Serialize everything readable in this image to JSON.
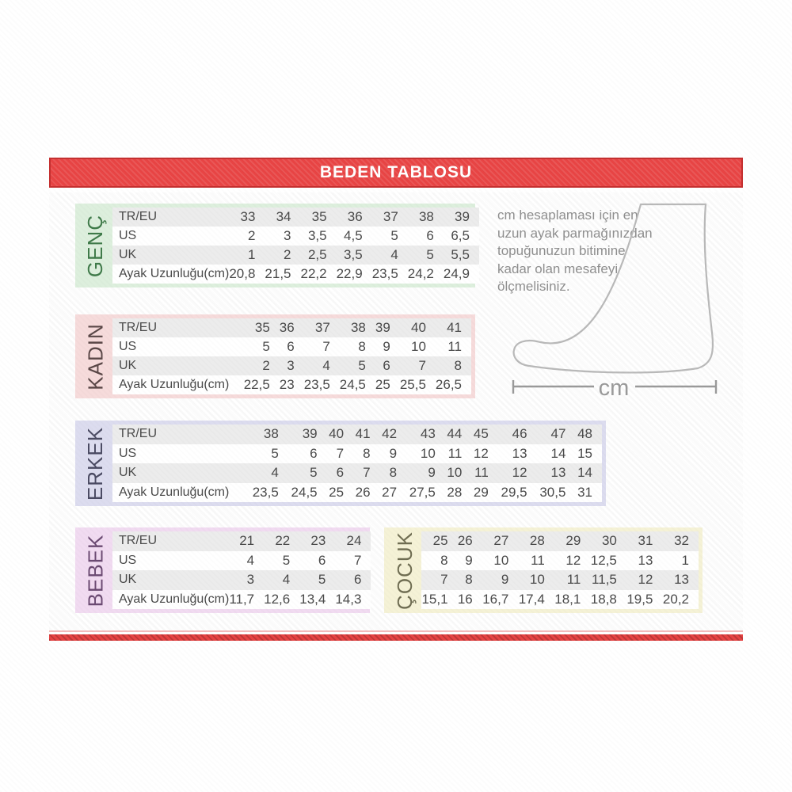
{
  "header": {
    "title": "BEDEN TABLOSU"
  },
  "colors": {
    "banner_red": "#e84444",
    "banner_border": "#c53030",
    "row_stripe": "#ececec",
    "table_text": "#4a4a4a",
    "foot_outline": "#b9b9b9"
  },
  "instruction": {
    "lines": [
      "cm hesaplaması için en",
      "uzun ayak parmağınızdan",
      "topuğunuzun bitimine",
      "kadar olan mesafeyi",
      "ölçmelisiniz."
    ]
  },
  "foot": {
    "measure_label": "cm"
  },
  "sections": [
    {
      "id": "genc",
      "label": "GENÇ",
      "label_color": "#3f7a49",
      "bg_color": "#ddefdd",
      "row_headers": [
        "TR/EU",
        "US",
        "UK",
        "Ayak Uzunluğu(cm)"
      ],
      "rows": [
        [
          "33",
          "34",
          "35",
          "36",
          "37",
          "38",
          "39"
        ],
        [
          "2",
          "3",
          "3,5",
          "4,5",
          "5",
          "6",
          "6,5"
        ],
        [
          "1",
          "2",
          "2,5",
          "3,5",
          "4",
          "5",
          "5,5"
        ],
        [
          "20,8",
          "21,5",
          "22,2",
          "22,9",
          "23,5",
          "24,2",
          "24,9"
        ]
      ]
    },
    {
      "id": "kadin",
      "label": "KADIN",
      "label_color": "#5a4747",
      "bg_color": "#f6dbdb",
      "row_headers": [
        "TR/EU",
        "US",
        "UK",
        "Ayak Uzunluğu(cm)"
      ],
      "rows": [
        [
          "35",
          "36",
          "37",
          "38",
          "39",
          "40",
          "41"
        ],
        [
          "5",
          "6",
          "7",
          "8",
          "9",
          "10",
          "11"
        ],
        [
          "2",
          "3",
          "4",
          "5",
          "6",
          "7",
          "8"
        ],
        [
          "22,5",
          "23",
          "23,5",
          "24,5",
          "25",
          "25,5",
          "26,5"
        ]
      ]
    },
    {
      "id": "erkek",
      "label": "ERKEK",
      "label_color": "#4b4b63",
      "bg_color": "#dcdcef",
      "row_headers": [
        "TR/EU",
        "US",
        "UK",
        "Ayak Uzunluğu(cm)"
      ],
      "rows": [
        [
          "38",
          "39",
          "40",
          "41",
          "42",
          "43",
          "44",
          "45",
          "46",
          "47",
          "48"
        ],
        [
          "5",
          "6",
          "7",
          "8",
          "9",
          "10",
          "11",
          "12",
          "13",
          "14",
          "15"
        ],
        [
          "4",
          "5",
          "6",
          "7",
          "8",
          "9",
          "10",
          "11",
          "12",
          "13",
          "14"
        ],
        [
          "23,5",
          "24,5",
          "25",
          "26",
          "27",
          "27,5",
          "28",
          "29",
          "29,5",
          "30,5",
          "31"
        ]
      ]
    },
    {
      "id": "bebek",
      "label": "BEBEK",
      "label_color": "#6b4a72",
      "bg_color": "#f1dbf1",
      "row_headers": [
        "TR/EU",
        "US",
        "UK",
        "Ayak Uzunluğu(cm)"
      ],
      "rows": [
        [
          "21",
          "22",
          "23",
          "24"
        ],
        [
          "4",
          "5",
          "6",
          "7"
        ],
        [
          "3",
          "4",
          "5",
          "6"
        ],
        [
          "11,7",
          "12,6",
          "13,4",
          "14,3"
        ]
      ]
    },
    {
      "id": "cocuk",
      "label": "ÇOCUK",
      "label_color": "#6f6d52",
      "bg_color": "#f5f2d6",
      "row_headers": [],
      "rows": [
        [
          "25",
          "26",
          "27",
          "28",
          "29",
          "30",
          "31",
          "32"
        ],
        [
          "8",
          "9",
          "10",
          "11",
          "12",
          "12,5",
          "13",
          "1"
        ],
        [
          "7",
          "8",
          "9",
          "10",
          "11",
          "11,5",
          "12",
          "13"
        ],
        [
          "15,1",
          "16",
          "16,7",
          "17,4",
          "18,1",
          "18,8",
          "19,5",
          "20,2"
        ]
      ]
    }
  ]
}
